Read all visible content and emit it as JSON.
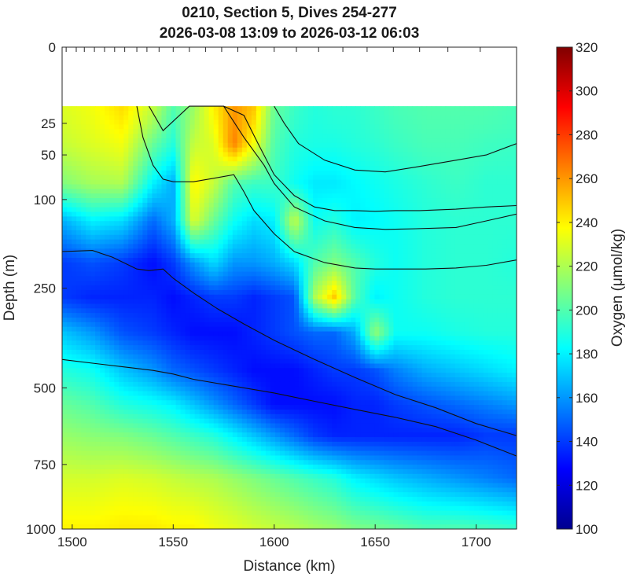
{
  "chart_data": {
    "type": "heatmap",
    "title": "0210, Section 5, Dives 254-277",
    "subtitle": "2026-03-08 13:09 to 2026-03-12 06:03",
    "xlabel": "Distance (km)",
    "ylabel": "Depth (m)",
    "colorbar_label": "Oxygen (μmol/kg)",
    "xlim": [
      1495,
      1720
    ],
    "ylim": [
      0,
      1000
    ],
    "y_scale": "square-root (depth axis stretched near surface)",
    "x_ticks": [
      1500,
      1550,
      1600,
      1650,
      1700
    ],
    "x_tick_labels": [
      "1500",
      "1550",
      "1600",
      "1650",
      "1700"
    ],
    "y_ticks": [
      0,
      25,
      50,
      100,
      250,
      500,
      750,
      1000
    ],
    "y_tick_labels": [
      "0",
      "25",
      "50",
      "100",
      "250",
      "500",
      "750",
      "1000"
    ],
    "clim": [
      100,
      320
    ],
    "colorbar_ticks": [
      100,
      120,
      140,
      160,
      180,
      200,
      220,
      240,
      260,
      280,
      300,
      320
    ],
    "colorbar_tick_labels": [
      "100",
      "120",
      "140",
      "160",
      "180",
      "200",
      "220",
      "240",
      "260",
      "280",
      "300",
      "320"
    ],
    "colormap": "jet",
    "data_top_depth_m": 15,
    "dive_surfacing_km": [
      1497,
      1502,
      1506,
      1511,
      1516,
      1521,
      1526,
      1532,
      1537,
      1543,
      1550,
      1558,
      1566,
      1574,
      1582,
      1591,
      1600,
      1611,
      1622,
      1634,
      1646,
      1659,
      1672,
      1686,
      1702
    ],
    "oxygen_field": {
      "description": "approximate gridded oxygen (umol/kg), rows = depth, cols = distance",
      "x": [
        1495,
        1510,
        1525,
        1540,
        1550,
        1560,
        1570,
        1580,
        1590,
        1600,
        1610,
        1620,
        1630,
        1640,
        1650,
        1660,
        1675,
        1690,
        1705,
        1720
      ],
      "depth": [
        15,
        40,
        80,
        130,
        200,
        270,
        350,
        450,
        550,
        650,
        800,
        1000
      ],
      "values": [
        [
          230,
          235,
          245,
          225,
          200,
          215,
          240,
          260,
          250,
          205,
          195,
          190,
          192,
          192,
          195,
          198,
          200,
          200,
          200,
          198
        ],
        [
          225,
          230,
          235,
          205,
          190,
          225,
          230,
          265,
          235,
          200,
          190,
          188,
          188,
          190,
          192,
          195,
          198,
          198,
          196,
          195
        ],
        [
          210,
          218,
          220,
          180,
          165,
          240,
          225,
          200,
          195,
          195,
          185,
          178,
          178,
          182,
          185,
          188,
          192,
          195,
          192,
          192
        ],
        [
          165,
          180,
          175,
          150,
          165,
          230,
          205,
          185,
          175,
          180,
          225,
          185,
          190,
          180,
          182,
          185,
          190,
          192,
          192,
          192
        ],
        [
          140,
          145,
          140,
          130,
          140,
          160,
          175,
          160,
          160,
          165,
          175,
          200,
          210,
          200,
          190,
          185,
          190,
          192,
          192,
          190
        ],
        [
          140,
          135,
          135,
          135,
          130,
          135,
          140,
          140,
          135,
          140,
          145,
          220,
          250,
          200,
          180,
          185,
          190,
          192,
          192,
          192
        ],
        [
          170,
          160,
          145,
          140,
          135,
          130,
          130,
          130,
          135,
          140,
          145,
          150,
          150,
          165,
          215,
          185,
          185,
          188,
          190,
          190
        ],
        [
          190,
          185,
          170,
          160,
          150,
          145,
          140,
          135,
          130,
          130,
          130,
          135,
          140,
          140,
          145,
          155,
          165,
          170,
          175,
          180
        ],
        [
          205,
          200,
          190,
          185,
          180,
          170,
          160,
          150,
          140,
          130,
          130,
          130,
          130,
          135,
          135,
          140,
          145,
          150,
          155,
          160
        ],
        [
          215,
          212,
          210,
          205,
          200,
          195,
          190,
          180,
          170,
          160,
          150,
          140,
          135,
          135,
          135,
          135,
          135,
          135,
          140,
          140
        ],
        [
          228,
          228,
          230,
          228,
          225,
          222,
          220,
          215,
          210,
          205,
          200,
          195,
          190,
          180,
          175,
          170,
          165,
          160,
          155,
          150
        ],
        [
          240,
          240,
          242,
          242,
          240,
          240,
          235,
          232,
          228,
          225,
          222,
          218,
          215,
          210,
          208,
          205,
          200,
          200,
          198,
          195
        ]
      ]
    },
    "contour_lines": [
      {
        "x": [
          1495,
          1510,
          1520,
          1532,
          1538,
          1545,
          1550,
          1560,
          1572,
          1585,
          1600,
          1620,
          1640,
          1660,
          1680,
          1700,
          1720
        ],
        "depth": [
          180,
          178,
          190,
          212,
          215,
          212,
          230,
          260,
          295,
          330,
          370,
          420,
          470,
          520,
          560,
          610,
          650
        ]
      },
      {
        "x": [
          1495,
          1510,
          1525,
          1540,
          1550,
          1560,
          1575,
          1590,
          1600,
          1620,
          1640,
          1660,
          1680,
          1700,
          1720
        ],
        "depth": [
          420,
          430,
          440,
          450,
          460,
          475,
          490,
          505,
          515,
          540,
          565,
          590,
          620,
          665,
          720
        ]
      },
      {
        "x": [
          1532,
          1535,
          1540,
          1545,
          1550,
          1560,
          1570,
          1580,
          1585,
          1590,
          1600,
          1610,
          1625,
          1640,
          1650,
          1660,
          1675,
          1690,
          1705,
          1720
        ],
        "depth": [
          15,
          35,
          60,
          75,
          78,
          78,
          74,
          70,
          90,
          115,
          150,
          180,
          200,
          210,
          212,
          212,
          212,
          210,
          205,
          195
        ]
      },
      {
        "x": [
          1538,
          1545,
          1558,
          1565,
          1575,
          1585,
          1592,
          1600,
          1610,
          1620,
          1630,
          1640,
          1650,
          1660,
          1672,
          1690,
          1705,
          1720
        ],
        "depth": [
          15,
          30,
          15,
          15,
          15,
          20,
          40,
          70,
          95,
          110,
          115,
          115,
          116,
          115,
          115,
          113,
          110,
          108
        ]
      },
      {
        "x": [
          1575,
          1585,
          1595,
          1600,
          1610,
          1625,
          1640,
          1655,
          1670,
          1690,
          1705,
          1720
        ],
        "depth": [
          15,
          35,
          60,
          80,
          110,
          130,
          140,
          143,
          142,
          140,
          130,
          120
        ]
      },
      {
        "x": [
          1600,
          1605,
          1612,
          1625,
          1640,
          1655,
          1670,
          1690,
          1705,
          1720
        ],
        "depth": [
          15,
          25,
          40,
          55,
          65,
          67,
          62,
          55,
          50,
          40
        ]
      }
    ]
  }
}
